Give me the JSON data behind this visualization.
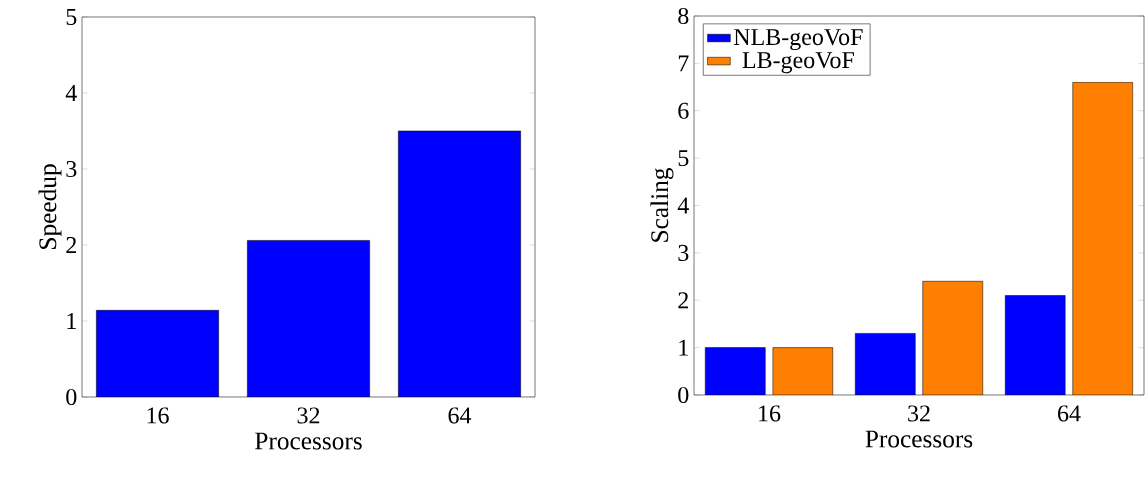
{
  "chart_data": [
    {
      "type": "bar",
      "categories": [
        "16",
        "32",
        "64"
      ],
      "xlabel": "Processors",
      "ylabel": "Speedup",
      "ylim": [
        0,
        5
      ],
      "yticks": [
        0,
        1,
        2,
        3,
        4,
        5
      ],
      "grid": false,
      "legend": false,
      "series": [
        {
          "color": "#0000ff",
          "values": [
            1.14,
            2.06,
            3.5
          ]
        }
      ]
    },
    {
      "type": "bar",
      "categories": [
        "16",
        "32",
        "64"
      ],
      "xlabel": "Processors",
      "ylabel": "Scaling",
      "ylim": [
        0,
        8
      ],
      "yticks": [
        0,
        1,
        2,
        3,
        4,
        5,
        6,
        7,
        8
      ],
      "grid": false,
      "legend": "top left",
      "series": [
        {
          "name": "NLB-geoVoF",
          "color": "#0000ff",
          "values": [
            1.0,
            1.3,
            2.1
          ]
        },
        {
          "name": "LB-geoVoF",
          "color": "#ff8000",
          "values": [
            1.0,
            2.4,
            6.6
          ]
        }
      ]
    }
  ]
}
